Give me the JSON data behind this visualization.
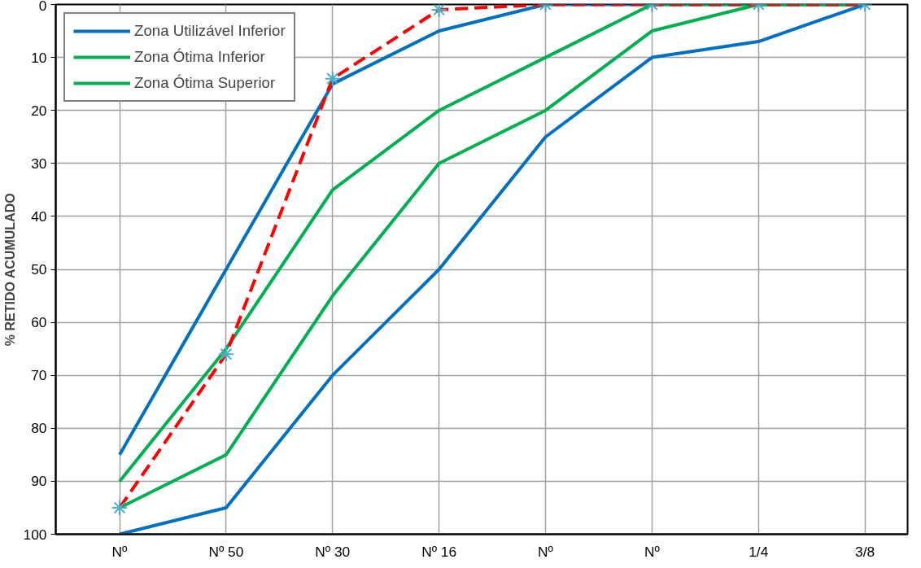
{
  "chart_data": {
    "type": "line",
    "ylabel": "% RETIDO ACUMULADO",
    "categories": [
      "Nº",
      "Nº 50",
      "Nº 30",
      "Nº 16",
      "Nº",
      "Nº",
      "1/4",
      "3/8"
    ],
    "series": [
      {
        "name": "Zona Utilizável Inferior",
        "color": "#0070c0",
        "values": [
          85,
          50,
          15,
          5,
          0,
          0,
          0,
          0
        ]
      },
      {
        "name": "Zona Ótima Inferior",
        "color": "#00b050",
        "values": [
          90,
          65,
          35,
          20,
          10,
          0,
          0,
          0
        ]
      },
      {
        "name": "Zona Ótima Superior",
        "color": "#00b050",
        "values": [
          95,
          85,
          55,
          30,
          20,
          5,
          0,
          0
        ]
      },
      {
        "color": "#0070c0",
        "values": [
          100,
          95,
          70,
          50,
          25,
          10,
          7,
          0
        ]
      },
      {
        "color": "#ff0000",
        "values": [
          95,
          66,
          14,
          1,
          0,
          0,
          0,
          0
        ],
        "line_style": "dashed"
      },
      {
        "type": "scatter",
        "color": "#4bacc6",
        "marker": "cross",
        "values": [
          95,
          66,
          14,
          1,
          0,
          0,
          0,
          0
        ]
      }
    ],
    "ylim": [
      100,
      0
    ],
    "yticks": [
      0,
      10,
      20,
      30,
      40,
      50,
      60,
      70,
      80,
      90,
      100
    ],
    "grid": true,
    "legend": "top left",
    "line_style": "solid"
  }
}
